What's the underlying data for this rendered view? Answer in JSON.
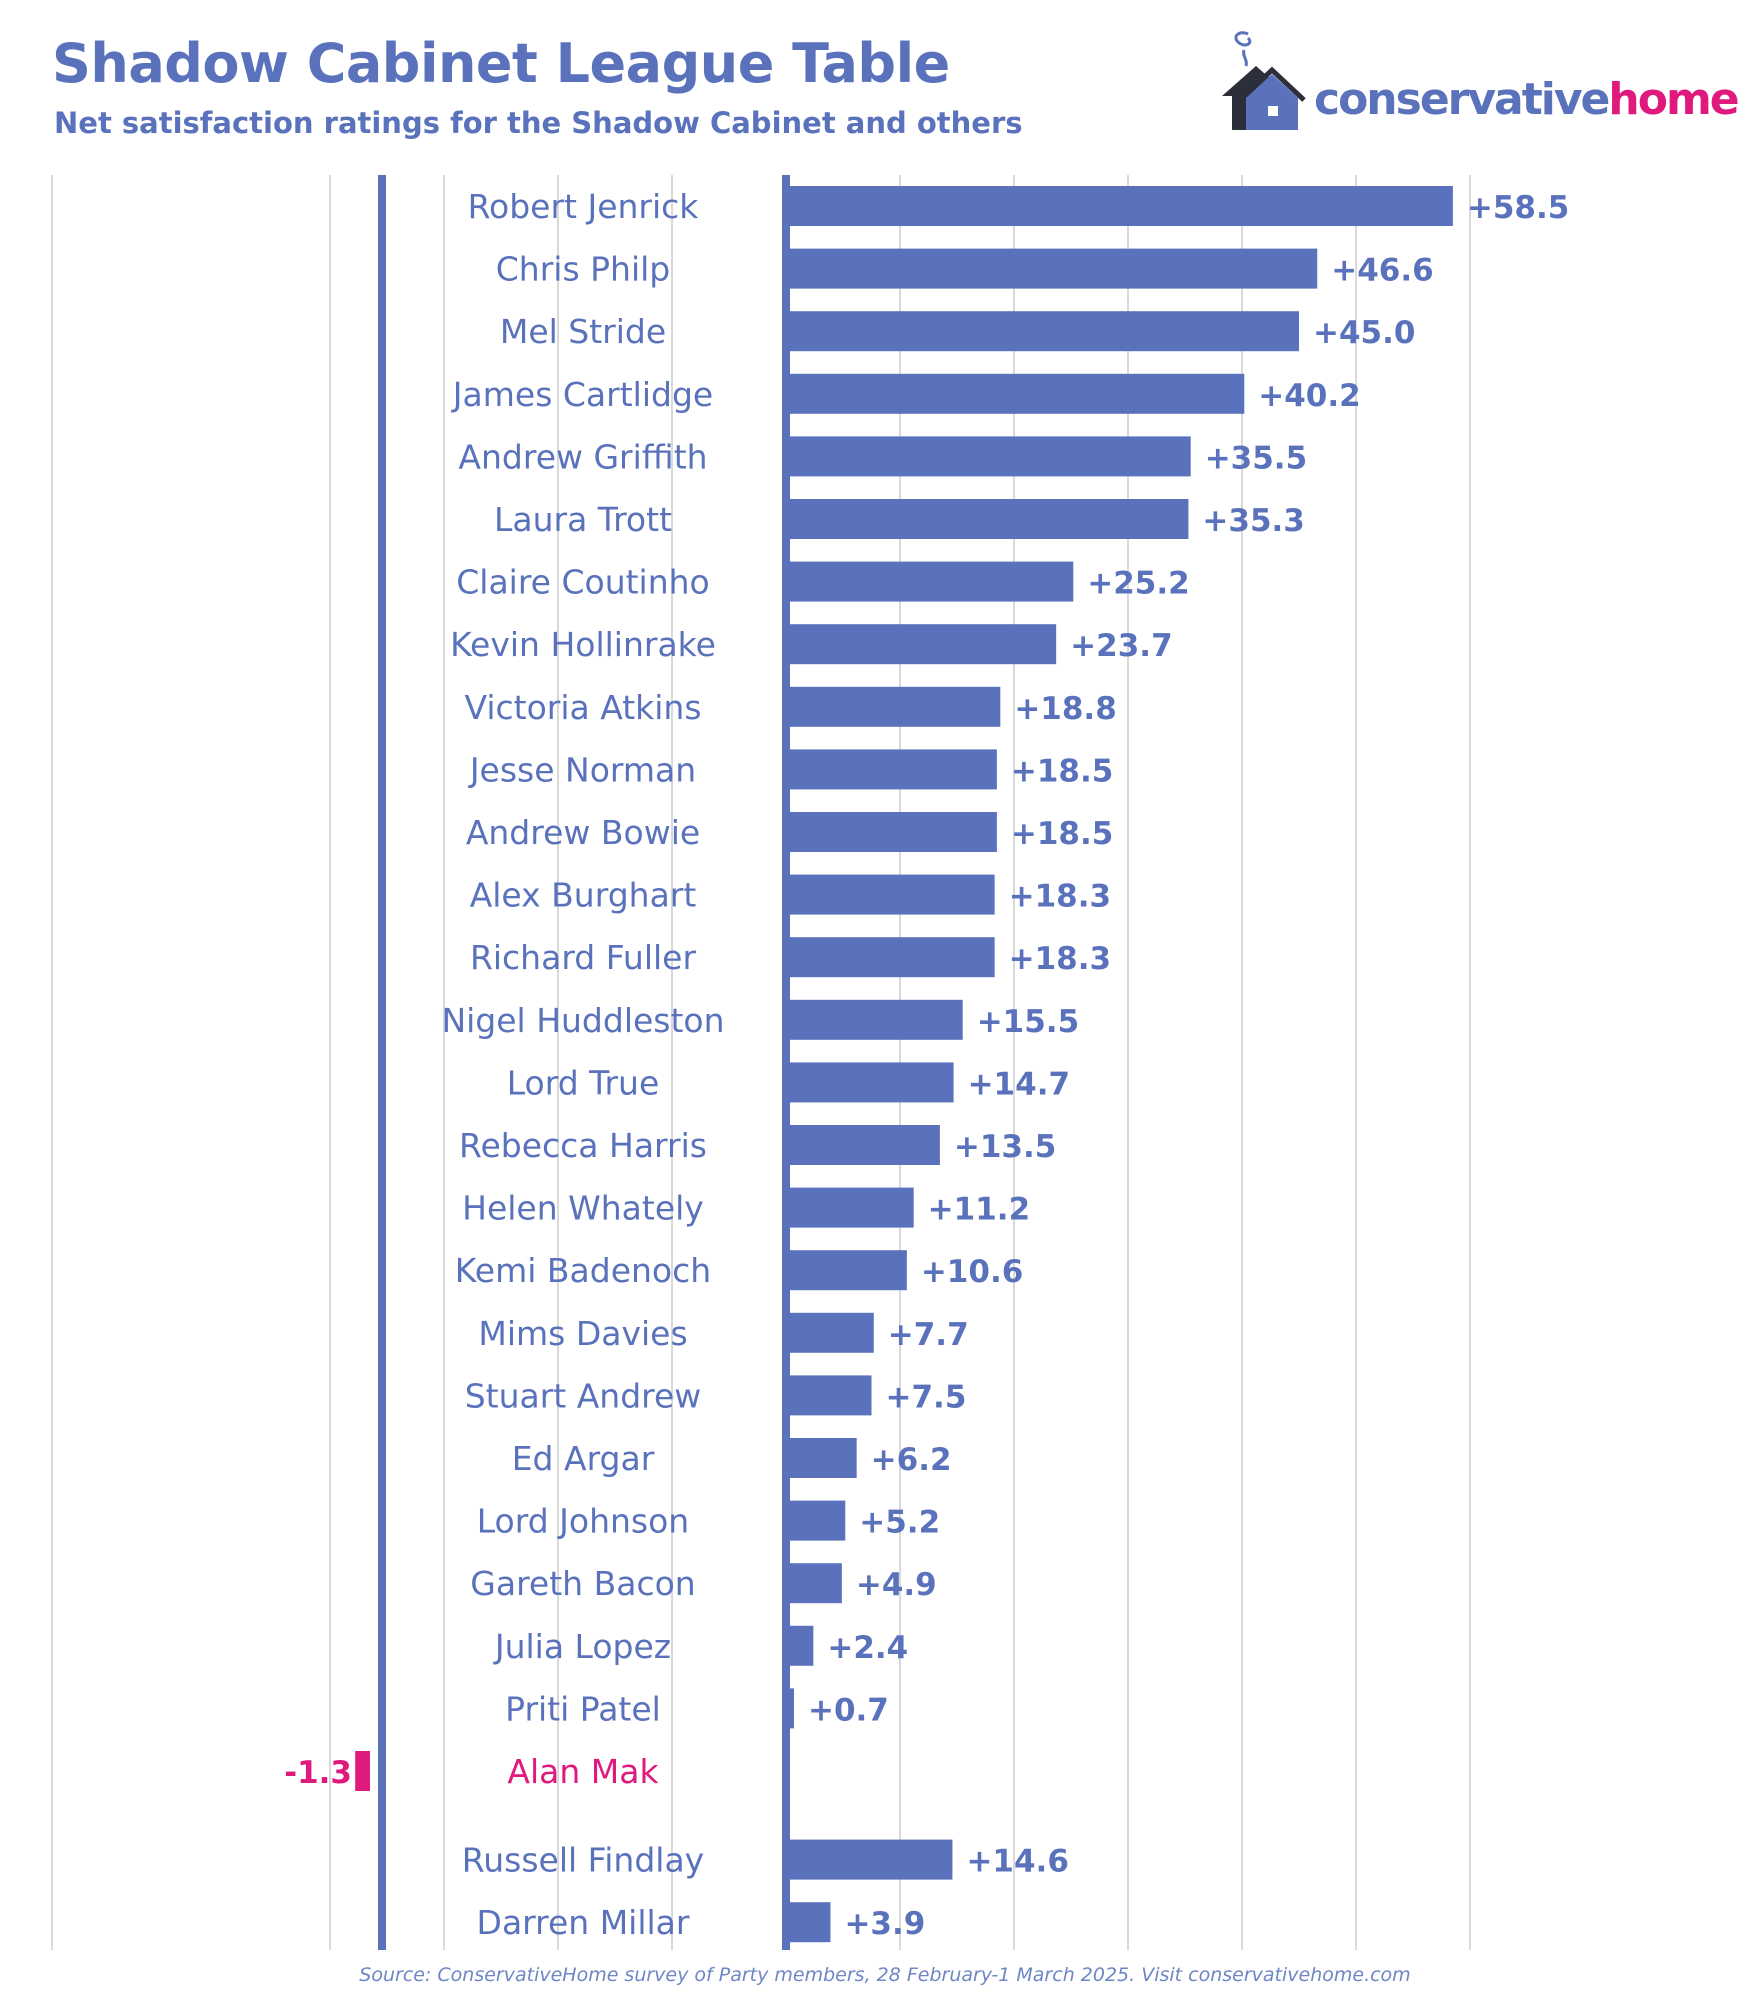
{
  "header": {
    "title": "Shadow Cabinet League Table",
    "subtitle": "Net satisfaction ratings for the Shadow Cabinet and others"
  },
  "logo": {
    "text_part1": "conservative",
    "text_part2": "home",
    "icon": "house-icon"
  },
  "colors": {
    "bar": "#5a72bb",
    "negative": "#e0197d",
    "label": "#5a72bb",
    "grid": "#d9d9d9"
  },
  "chart_data": {
    "type": "bar",
    "orientation": "horizontal",
    "title": "Shadow Cabinet League Table",
    "subtitle": "Net satisfaction ratings for the Shadow Cabinet and others",
    "grid": true,
    "value_format": "signed, one decimal",
    "categories": [
      "Robert Jenrick",
      "Chris Philp",
      "Mel Stride",
      "James Cartlidge",
      "Andrew Griffith",
      "Laura Trott",
      "Claire Coutinho",
      "Kevin Hollinrake",
      "Victoria Atkins",
      "Jesse Norman",
      "Andrew Bowie",
      "Alex Burghart",
      "Richard Fuller",
      "Nigel Huddleston",
      "Lord True",
      "Rebecca Harris",
      "Helen Whately",
      "Kemi Badenoch",
      "Mims Davies",
      "Stuart Andrew",
      "Ed Argar",
      "Lord Johnson",
      "Gareth Bacon",
      "Julia Lopez",
      "Priti Patel",
      "Alan Mak",
      "Russell Findlay",
      "Darren Millar"
    ],
    "values": [
      58.5,
      46.6,
      45.0,
      40.2,
      35.5,
      35.3,
      25.2,
      23.7,
      18.8,
      18.5,
      18.5,
      18.3,
      18.3,
      15.5,
      14.7,
      13.5,
      11.2,
      10.6,
      7.7,
      7.5,
      6.2,
      5.2,
      4.9,
      2.4,
      0.7,
      -1.3,
      14.6,
      3.9
    ],
    "groups": [
      {
        "name": "Shadow Cabinet",
        "count": 26
      },
      {
        "name": "others",
        "count": 2
      }
    ],
    "highlight": {
      "Alan Mak": "negative"
    }
  },
  "footer": {
    "source": "Source: ConservativeHome survey of Party members, 28 February-1 March 2025. Visit conservativehome.com"
  }
}
